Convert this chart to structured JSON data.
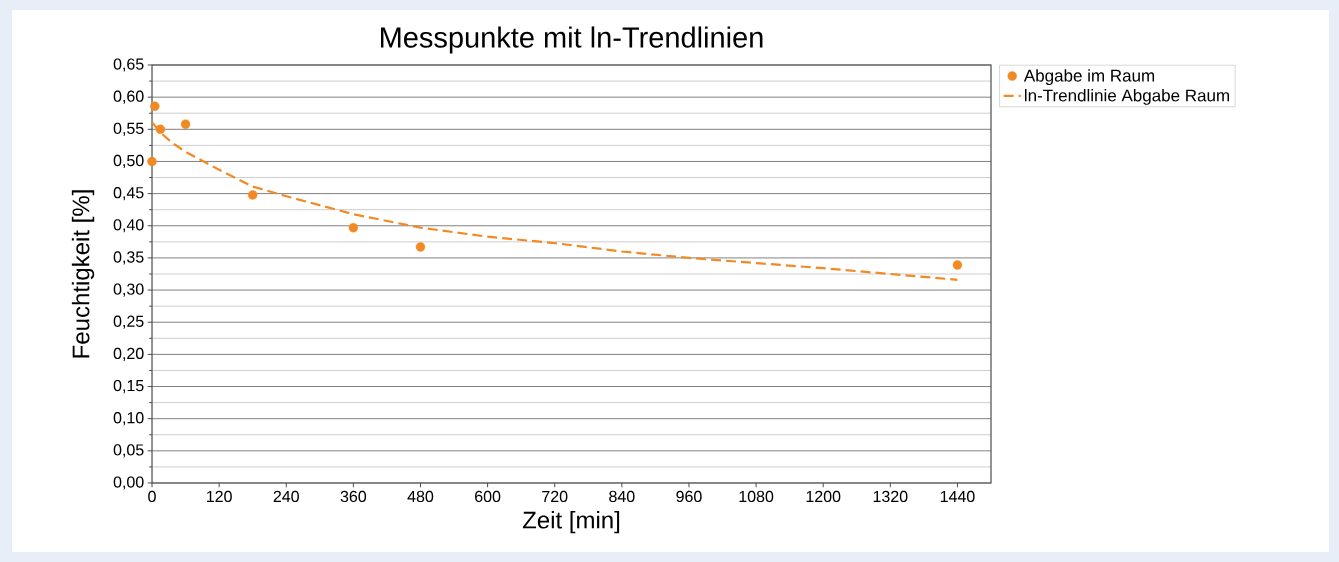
{
  "chart_data": {
    "type": "scatter",
    "title": "Messpunkte mit ln-Trendlinien",
    "xlabel": "Zeit [min]",
    "ylabel": "Feuchtigkeit [%]",
    "x": [
      0,
      5,
      15,
      60,
      180,
      360,
      480,
      1440
    ],
    "xlim": [
      0,
      1500
    ],
    "ylim": [
      0,
      0.65
    ],
    "xticks": [
      0,
      120,
      240,
      360,
      480,
      600,
      720,
      840,
      960,
      1080,
      1200,
      1320,
      1440
    ],
    "yticks": [
      {
        "value": 0,
        "label": "0,00"
      },
      {
        "value": 0.05,
        "label": "0,05"
      },
      {
        "value": 0.1,
        "label": "0,10"
      },
      {
        "value": 0.15,
        "label": "0,15"
      },
      {
        "value": 0.2,
        "label": "0,20"
      },
      {
        "value": 0.25,
        "label": "0,25"
      },
      {
        "value": 0.3,
        "label": "0,30"
      },
      {
        "value": 0.35,
        "label": "0,35"
      },
      {
        "value": 0.4,
        "label": "0,40"
      },
      {
        "value": 0.45,
        "label": "0,45"
      },
      {
        "value": 0.5,
        "label": "0,50"
      },
      {
        "value": 0.55,
        "label": "0,55"
      },
      {
        "value": 0.6,
        "label": "0,60"
      },
      {
        "value": 0.65,
        "label": "0,65"
      }
    ],
    "grid": "y",
    "legend": "right",
    "series": [
      {
        "name": "Abgabe im Raum",
        "marker": "circle",
        "color": "#f28a24",
        "values": [
          0.5,
          0.586,
          0.55,
          0.558,
          0.448,
          0.397,
          0.367,
          0.339
        ]
      },
      {
        "name": "ln-Trendlinie Abgabe Raum",
        "type": "line",
        "line_style": "dashed",
        "marker": "none",
        "color": "#f28a24",
        "x": [
          1,
          15,
          36,
          60,
          120,
          180,
          240,
          360,
          480,
          600,
          720,
          840,
          960,
          1080,
          1200,
          1320,
          1440
        ],
        "values": [
          0.56,
          0.545,
          0.529,
          0.515,
          0.487,
          0.461,
          0.446,
          0.418,
          0.397,
          0.383,
          0.373,
          0.36,
          0.35,
          0.342,
          0.334,
          0.325,
          0.316
        ]
      }
    ]
  }
}
